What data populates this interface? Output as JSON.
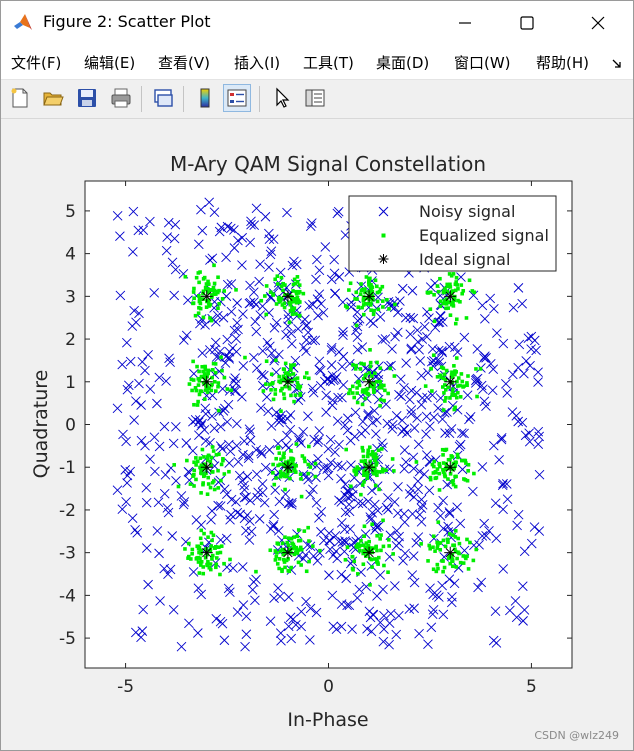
{
  "window": {
    "title": "Figure 2: Scatter Plot",
    "minimize_label": "minimize",
    "maximize_label": "maximize",
    "close_label": "close"
  },
  "menu": {
    "items": [
      {
        "label": "文件(F)"
      },
      {
        "label": "编辑(E)"
      },
      {
        "label": "查看(V)"
      },
      {
        "label": "插入(I)"
      },
      {
        "label": "工具(T)"
      },
      {
        "label": "桌面(D)"
      },
      {
        "label": "窗口(W)"
      },
      {
        "label": "帮助(H)"
      }
    ],
    "overflow_icon": "overflow-arrow-icon"
  },
  "toolbar": {
    "buttons": [
      {
        "name": "new-figure-icon"
      },
      {
        "name": "open-file-icon"
      },
      {
        "name": "save-icon"
      },
      {
        "name": "print-icon"
      },
      {
        "name": "link-plot-icon"
      },
      {
        "name": "colorbar-icon"
      },
      {
        "name": "legend-icon"
      },
      {
        "name": "edit-plot-arrow-icon"
      },
      {
        "name": "property-inspector-icon"
      }
    ]
  },
  "watermark": "CSDN @wlz249",
  "colors": {
    "noisy": "#0000cc",
    "equalized": "#00ee00",
    "ideal": "#000000",
    "axes_bg": "#ffffff",
    "figure_bg": "#f0f0f0"
  },
  "chart_data": {
    "type": "scatter",
    "title": "M-Ary QAM Signal Constellation",
    "xlabel": "In-Phase",
    "ylabel": "Quadrature",
    "xlim": [
      -6,
      6
    ],
    "ylim": [
      -5.7,
      5.7
    ],
    "xticks": [
      -5,
      0,
      5
    ],
    "xtick_labels": [
      "-5",
      "0",
      "5"
    ],
    "yticks": [
      5,
      4,
      3,
      2,
      1,
      0,
      -1,
      -2,
      -3,
      -4,
      -5
    ],
    "ytick_labels": [
      "5",
      "4",
      "3",
      "2",
      "1",
      "0",
      "-1",
      "-2",
      "-3",
      "-4",
      "-5"
    ],
    "grid": false,
    "legend_position": "top-right",
    "series": [
      {
        "name": "Noisy signal",
        "marker": "x",
        "color": "#0000cc",
        "count": 1000,
        "spread": "uniform approx [-5, 5]"
      },
      {
        "name": "Equalized signal",
        "marker": "square-dot",
        "color": "#00ee00",
        "count": 1000,
        "spread": "clustered near ideal points, std ~0.25"
      },
      {
        "name": "Ideal signal",
        "marker": "asterisk",
        "color": "#000000",
        "points": [
          [
            -3,
            3
          ],
          [
            -1,
            3
          ],
          [
            1,
            3
          ],
          [
            3,
            3
          ],
          [
            -3,
            1
          ],
          [
            -1,
            1
          ],
          [
            1,
            1
          ],
          [
            3,
            1
          ],
          [
            -3,
            -1
          ],
          [
            -1,
            -1
          ],
          [
            1,
            -1
          ],
          [
            3,
            -1
          ],
          [
            -3,
            -3
          ],
          [
            -1,
            -3
          ],
          [
            1,
            -3
          ],
          [
            3,
            -3
          ]
        ]
      }
    ]
  }
}
